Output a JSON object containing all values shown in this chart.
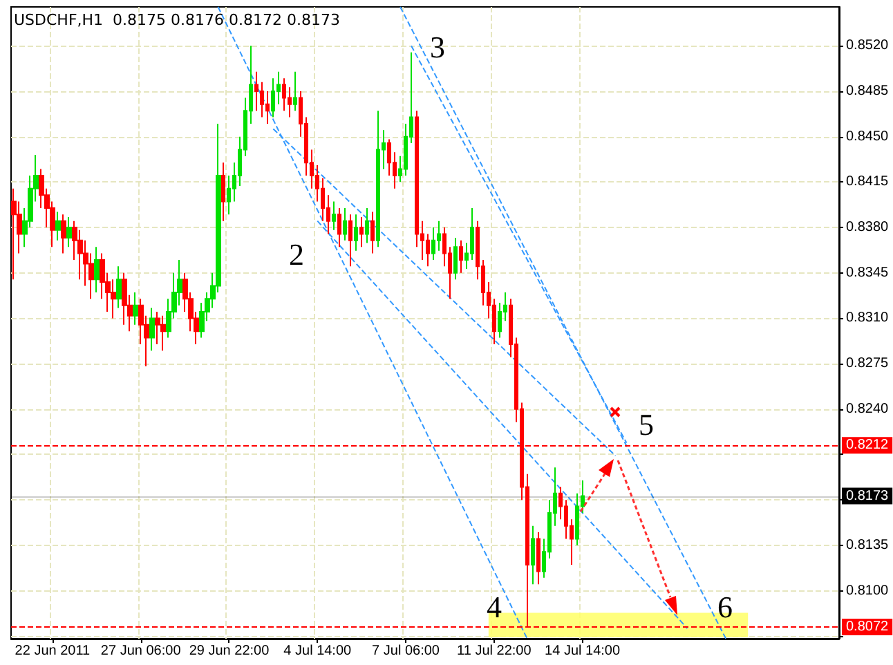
{
  "chart_data": {
    "type": "candlestick",
    "title": "USDCHF,H1  0.8175 0.8176 0.8172 0.8173",
    "categories": [
      null,
      null,
      null,
      null,
      null,
      null,
      null,
      "22 Jun 2011",
      null,
      null,
      null,
      null,
      null,
      null,
      null,
      null,
      null,
      null,
      null,
      null,
      null,
      null,
      null,
      "27 Jun 06:00",
      null,
      null,
      null,
      null,
      null,
      null,
      null,
      null,
      null,
      null,
      null,
      null,
      null,
      null,
      null,
      "29 Jun 22:00",
      null,
      null,
      null,
      null,
      null,
      null,
      null,
      null,
      null,
      null,
      null,
      null,
      null,
      null,
      null,
      "4 Jul 14:00",
      null,
      null,
      null,
      null,
      null,
      null,
      null,
      null,
      null,
      null,
      null,
      null,
      null,
      null,
      null,
      "7 Jul 06:00",
      null,
      null,
      null,
      null,
      null,
      null,
      null,
      null,
      null,
      null,
      null,
      null,
      null,
      null,
      null,
      "11 Jul 22:00",
      null,
      null,
      null,
      null,
      null,
      null,
      null,
      null,
      null,
      null,
      null,
      null,
      null,
      null,
      null,
      "14 Jul 14:00",
      null,
      null,
      null,
      null,
      null,
      null,
      null,
      null,
      null,
      null,
      null,
      null,
      null,
      null,
      null,
      null,
      null,
      null,
      null,
      null,
      null,
      null,
      null,
      null,
      null,
      null,
      null,
      null,
      null,
      null,
      null,
      null,
      null,
      null,
      null,
      null,
      null,
      null,
      null,
      null,
      null,
      null,
      null,
      null,
      null,
      null
    ],
    "series": [
      {
        "type": "candlestick",
        "colors": [
          "#ff0000",
          "#ff0000",
          "#00e000",
          "#00e000",
          "#00e000",
          "#ff0000",
          "#ff0000",
          "#ff0000",
          "#00e000",
          "#ff0000",
          "#00e000",
          "#ff0000",
          "#ff0000",
          "#ff0000",
          "#ff0000",
          "#00e000",
          "#ff0000",
          "#ff0000",
          "#ff0000",
          "#00e000",
          "#ff0000",
          "#ff0000",
          "#00e000",
          "#ff0000",
          "#ff0000",
          "#00e000",
          "#ff0000",
          "#ff0000",
          "#00e000",
          "#00e000",
          "#00e000",
          "#ff0000",
          "#ff0000",
          "#ff0000",
          "#00e000",
          "#00e000",
          "#00e000",
          "#00e000",
          "#ff0000",
          "#00e000",
          "#00e000",
          "#00e000",
          "#00e000",
          "#00e000",
          "#ff0000",
          "#ff0000",
          "#ff0000",
          "#00e000",
          "#00e000",
          "#ff0000",
          "#ff0000",
          "#00e000",
          "#ff0000",
          "#ff0000",
          "#ff0000",
          "#ff0000",
          "#ff0000",
          "#ff0000",
          "#00e000",
          "#ff0000",
          "#00e000",
          "#ff0000",
          "#00e000",
          "#ff0000",
          "#00e000",
          "#ff0000",
          "#00e000",
          "#00e000",
          "#ff0000",
          "#ff0000",
          "#00e000",
          "#00e000",
          "#00e000",
          "#ff0000",
          "#ff0000",
          "#ff0000",
          "#00e000",
          "#00e000",
          "#ff0000",
          "#ff0000",
          "#00e000",
          "#ff0000",
          "#00e000",
          "#00e000",
          "#ff0000",
          "#ff0000",
          "#ff0000",
          "#ff0000",
          "#00e000",
          "#00e000",
          "#ff0000",
          "#ff0000",
          "#ff0000",
          "#ff0000",
          "#00e000",
          "#ff0000",
          "#00e000",
          "#00e000",
          "#00e000",
          "#ff0000",
          "#ff0000",
          "#ff0000",
          "#00e000",
          "#00e000",
          null,
          null,
          null,
          null,
          null,
          null,
          null,
          null,
          null,
          null,
          null,
          null,
          null,
          null,
          null,
          null,
          null,
          null,
          null,
          null,
          null,
          null,
          null,
          null,
          null,
          null,
          null,
          null,
          null,
          null,
          null,
          null,
          null,
          null,
          null,
          null,
          null,
          null,
          null,
          null,
          null,
          null,
          null,
          null,
          null,
          null
        ],
        "ohlc": [
          [
            0.84,
            0.841,
            0.834,
            0.839
          ],
          [
            0.839,
            0.84,
            0.836,
            0.8375
          ],
          [
            0.8375,
            0.8395,
            0.8365,
            0.8385
          ],
          [
            0.8385,
            0.842,
            0.838,
            0.841
          ],
          [
            0.841,
            0.8436,
            0.84,
            0.842
          ],
          [
            0.842,
            0.8425,
            0.8395,
            0.8405
          ],
          [
            0.8405,
            0.841,
            0.838,
            0.8395
          ],
          [
            0.8395,
            0.84,
            0.8365,
            0.8378
          ],
          [
            0.8378,
            0.8392,
            0.837,
            0.8385
          ],
          [
            0.8385,
            0.839,
            0.836,
            0.8372
          ],
          [
            0.8372,
            0.8388,
            0.8365,
            0.838
          ],
          [
            0.838,
            0.8385,
            0.8355,
            0.837
          ],
          [
            0.837,
            0.8378,
            0.834,
            0.836
          ],
          [
            0.836,
            0.837,
            0.8335,
            0.8352
          ],
          [
            0.8352,
            0.836,
            0.8325,
            0.834
          ],
          [
            0.834,
            0.8365,
            0.833,
            0.8355
          ],
          [
            0.8355,
            0.836,
            0.8325,
            0.8338
          ],
          [
            0.8338,
            0.8345,
            0.8315,
            0.833
          ],
          [
            0.833,
            0.834,
            0.831,
            0.8325
          ],
          [
            0.8325,
            0.835,
            0.8318,
            0.834
          ],
          [
            0.834,
            0.8345,
            0.8305,
            0.832
          ],
          [
            0.832,
            0.8328,
            0.83,
            0.8312
          ],
          [
            0.8312,
            0.833,
            0.8305,
            0.832
          ],
          [
            0.832,
            0.8325,
            0.829,
            0.8305
          ],
          [
            0.8305,
            0.8312,
            0.8273,
            0.8295
          ],
          [
            0.8295,
            0.8318,
            0.8285,
            0.831
          ],
          [
            0.831,
            0.8315,
            0.829,
            0.8305
          ],
          [
            0.8305,
            0.8312,
            0.8285,
            0.83
          ],
          [
            0.83,
            0.8325,
            0.8295,
            0.8315
          ],
          [
            0.8315,
            0.8345,
            0.831,
            0.833
          ],
          [
            0.833,
            0.8355,
            0.832,
            0.834
          ],
          [
            0.834,
            0.8345,
            0.8315,
            0.8325
          ],
          [
            0.8325,
            0.833,
            0.83,
            0.831
          ],
          [
            0.831,
            0.8315,
            0.829,
            0.83
          ],
          [
            0.83,
            0.8322,
            0.8295,
            0.8315
          ],
          [
            0.8315,
            0.833,
            0.8308,
            0.8325
          ],
          [
            0.8325,
            0.8345,
            0.8318,
            0.8335
          ],
          [
            0.8335,
            0.846,
            0.833,
            0.842
          ],
          [
            0.842,
            0.843,
            0.8385,
            0.84
          ],
          [
            0.84,
            0.842,
            0.839,
            0.841
          ],
          [
            0.841,
            0.843,
            0.84,
            0.842
          ],
          [
            0.842,
            0.845,
            0.8412,
            0.844
          ],
          [
            0.844,
            0.848,
            0.8435,
            0.847
          ],
          [
            0.847,
            0.852,
            0.846,
            0.849
          ],
          [
            0.849,
            0.85,
            0.847,
            0.8485
          ],
          [
            0.8485,
            0.8492,
            0.8465,
            0.8475
          ],
          [
            0.8475,
            0.8485,
            0.846,
            0.847
          ],
          [
            0.847,
            0.8495,
            0.8465,
            0.8485
          ],
          [
            0.8485,
            0.85,
            0.8475,
            0.849
          ],
          [
            0.849,
            0.8495,
            0.847,
            0.848
          ],
          [
            0.848,
            0.8488,
            0.8465,
            0.8475
          ],
          [
            0.8475,
            0.85,
            0.847,
            0.848
          ],
          [
            0.848,
            0.8485,
            0.845,
            0.846
          ],
          [
            0.846,
            0.8465,
            0.842,
            0.843
          ],
          [
            0.843,
            0.844,
            0.841,
            0.842
          ],
          [
            0.842,
            0.8428,
            0.84,
            0.841
          ],
          [
            0.841,
            0.8418,
            0.8385,
            0.8395
          ],
          [
            0.8395,
            0.8405,
            0.8375,
            0.8385
          ],
          [
            0.8385,
            0.84,
            0.8378,
            0.839
          ],
          [
            0.839,
            0.8395,
            0.8365,
            0.8375
          ],
          [
            0.8375,
            0.8395,
            0.837,
            0.8385
          ],
          [
            0.8385,
            0.839,
            0.835,
            0.837
          ],
          [
            0.837,
            0.839,
            0.8362,
            0.838
          ],
          [
            0.838,
            0.8388,
            0.8365,
            0.8375
          ],
          [
            0.8375,
            0.8395,
            0.8368,
            0.8385
          ],
          [
            0.8385,
            0.8392,
            0.836,
            0.837
          ],
          [
            0.837,
            0.847,
            0.8365,
            0.844
          ],
          [
            0.844,
            0.8455,
            0.8425,
            0.8445
          ],
          [
            0.8445,
            0.8448,
            0.842,
            0.843
          ],
          [
            0.843,
            0.8438,
            0.841,
            0.842
          ],
          [
            0.842,
            0.8435,
            0.8415,
            0.8425
          ],
          [
            0.8425,
            0.846,
            0.842,
            0.845
          ],
          [
            0.845,
            0.8515,
            0.8445,
            0.8465
          ],
          [
            0.8465,
            0.847,
            0.8365,
            0.8375
          ],
          [
            0.8375,
            0.8385,
            0.8355,
            0.837
          ],
          [
            0.837,
            0.8375,
            0.835,
            0.836
          ],
          [
            0.836,
            0.838,
            0.8355,
            0.837
          ],
          [
            0.837,
            0.8385,
            0.8362,
            0.8375
          ],
          [
            0.8375,
            0.838,
            0.835,
            0.836
          ],
          [
            0.836,
            0.8365,
            0.8325,
            0.8345
          ],
          [
            0.8345,
            0.8372,
            0.834,
            0.8365
          ],
          [
            0.8365,
            0.837,
            0.8345,
            0.8355
          ],
          [
            0.8355,
            0.8368,
            0.8348,
            0.836
          ],
          [
            0.836,
            0.8395,
            0.8355,
            0.838
          ],
          [
            0.838,
            0.8385,
            0.834,
            0.835
          ],
          [
            0.835,
            0.8355,
            0.832,
            0.833
          ],
          [
            0.833,
            0.8338,
            0.831,
            0.832
          ],
          [
            0.832,
            0.8325,
            0.829,
            0.83
          ],
          [
            0.83,
            0.8322,
            0.8295,
            0.8315
          ],
          [
            0.8315,
            0.833,
            0.8308,
            0.832
          ],
          [
            0.832,
            0.8325,
            0.828,
            0.829
          ],
          [
            0.829,
            0.8295,
            0.823,
            0.824
          ],
          [
            0.824,
            0.8245,
            0.817,
            0.818
          ],
          [
            0.818,
            0.819,
            0.8072,
            0.812
          ],
          [
            0.812,
            0.815,
            0.8105,
            0.814
          ],
          [
            0.814,
            0.8145,
            0.8105,
            0.8115
          ],
          [
            0.8115,
            0.814,
            0.811,
            0.813
          ],
          [
            0.813,
            0.817,
            0.8125,
            0.816
          ],
          [
            0.816,
            0.8195,
            0.815,
            0.8175
          ],
          [
            0.8175,
            0.818,
            0.8155,
            0.8165
          ],
          [
            0.8165,
            0.817,
            0.814,
            0.815
          ],
          [
            0.815,
            0.8155,
            0.812,
            0.814
          ],
          [
            0.814,
            0.8175,
            0.8135,
            0.8165
          ],
          [
            0.8165,
            0.8185,
            0.816,
            0.8173
          ],
          null,
          null,
          null,
          null,
          null,
          null,
          null,
          null,
          null,
          null,
          null,
          null,
          null,
          null,
          null,
          null,
          null,
          null,
          null,
          null,
          null,
          null,
          null,
          null,
          null,
          null,
          null,
          null,
          null,
          null,
          null,
          null,
          null,
          null,
          null,
          null,
          null,
          null,
          null,
          null,
          null,
          null,
          null,
          null,
          null,
          null
        ]
      },
      {
        "type": "line",
        "color": "#3399ff",
        "line_style": "dashed",
        "values": [
          null,
          null,
          null,
          null,
          null,
          null,
          null,
          null,
          null,
          null,
          null,
          null,
          null,
          null,
          null,
          null,
          null,
          null,
          null,
          null,
          null,
          null,
          null,
          null,
          null,
          null,
          null,
          null,
          null,
          null,
          null,
          null,
          null,
          null,
          null,
          null,
          null,
          null,
          null,
          null,
          null,
          null,
          null,
          null,
          null,
          null,
          null,
          null,
          null,
          null,
          null,
          null,
          null,
          null,
          null,
          null,
          null,
          null,
          null,
          null,
          null,
          null,
          null,
          null,
          null,
          null,
          null,
          null,
          null,
          null,
          0.855,
          null,
          null,
          null,
          null,
          null,
          null,
          null,
          null,
          null,
          null,
          null,
          null,
          null,
          null,
          null,
          null,
          null,
          null,
          null,
          null,
          null,
          null,
          null,
          null,
          null,
          null,
          null,
          null,
          null,
          null,
          null,
          null,
          null,
          null,
          null,
          null,
          null,
          null,
          null,
          null,
          null,
          null,
          null,
          null,
          null,
          null,
          null,
          null,
          null,
          null,
          null,
          null,
          null,
          null,
          null,
          null,
          null,
          null,
          0.8063,
          null,
          null,
          null,
          null,
          null,
          null,
          null,
          null,
          null,
          null,
          null,
          null,
          null,
          null,
          null,
          null,
          null,
          null,
          null,
          null
        ]
      },
      {
        "type": "line",
        "color": "#3399ff",
        "line_style": "dashed",
        "values": [
          null,
          null,
          null,
          null,
          null,
          null,
          null,
          null,
          null,
          null,
          null,
          null,
          null,
          null,
          null,
          null,
          null,
          null,
          null,
          null,
          null,
          null,
          null,
          null,
          null,
          null,
          null,
          null,
          null,
          null,
          null,
          null,
          null,
          null,
          null,
          null,
          null,
          0.855,
          null,
          null,
          null,
          null,
          null,
          null,
          null,
          null,
          null,
          null,
          null,
          null,
          null,
          null,
          null,
          null,
          null,
          null,
          null,
          null,
          null,
          null,
          null,
          null,
          null,
          null,
          null,
          null,
          null,
          null,
          null,
          null,
          null,
          null,
          null,
          null,
          null,
          null,
          null,
          null,
          null,
          null,
          null,
          null,
          null,
          null,
          null,
          null,
          null,
          null,
          null,
          null,
          null,
          null,
          null,
          0.8063,
          null,
          null,
          null,
          null,
          null,
          null,
          null,
          null,
          null,
          null,
          null,
          null,
          null,
          null,
          null,
          null,
          null,
          null,
          null,
          null,
          null,
          null,
          null,
          null,
          null,
          null,
          null,
          null,
          null,
          null,
          null,
          null,
          null,
          null,
          null,
          null,
          null,
          null,
          null,
          null,
          null,
          null,
          null,
          null,
          null,
          null,
          null,
          null,
          null,
          null,
          null,
          null,
          null,
          null,
          null,
          null
        ]
      },
      {
        "type": "line",
        "color": "#3399ff",
        "line_style": "dashed",
        "values": [
          null,
          null,
          null,
          null,
          null,
          null,
          null,
          null,
          null,
          null,
          null,
          null,
          null,
          null,
          null,
          null,
          null,
          null,
          null,
          null,
          null,
          null,
          null,
          null,
          null,
          null,
          null,
          null,
          null,
          null,
          null,
          null,
          null,
          null,
          null,
          null,
          null,
          null,
          null,
          null,
          null,
          null,
          null,
          null,
          null,
          null,
          null,
          null,
          null,
          null,
          null,
          null,
          null,
          null,
          null,
          null,
          null,
          null,
          null,
          null,
          null,
          null,
          null,
          null,
          null,
          null,
          null,
          null,
          null,
          null,
          null,
          null,
          0.852,
          null,
          null,
          null,
          null,
          null,
          null,
          null,
          null,
          null,
          null,
          null,
          null,
          null,
          null,
          null,
          null,
          null,
          null,
          null,
          null,
          null,
          null,
          null,
          null,
          null,
          null,
          null,
          null,
          null,
          null,
          null,
          null,
          null,
          null,
          null,
          null,
          null,
          null,
          0.8214,
          null,
          null,
          null,
          null,
          null,
          null,
          null,
          null,
          null,
          null,
          null,
          null,
          null,
          null,
          null,
          null,
          null,
          null,
          null,
          null,
          null,
          null,
          null,
          null,
          null,
          null,
          null,
          null,
          null,
          null,
          null,
          null,
          null,
          null,
          null,
          null,
          null,
          null
        ]
      },
      {
        "type": "line",
        "color": "#3399ff",
        "line_style": "dashed",
        "values": [
          null,
          null,
          null,
          null,
          null,
          null,
          null,
          null,
          null,
          null,
          null,
          null,
          null,
          null,
          null,
          null,
          null,
          null,
          null,
          null,
          null,
          null,
          null,
          null,
          null,
          null,
          null,
          null,
          null,
          null,
          null,
          null,
          null,
          null,
          null,
          null,
          null,
          null,
          null,
          null,
          null,
          null,
          null,
          null,
          null,
          null,
          null,
          0.8456,
          null,
          null,
          null,
          null,
          null,
          null,
          null,
          null,
          null,
          null,
          null,
          null,
          null,
          null,
          null,
          null,
          null,
          null,
          null,
          null,
          null,
          null,
          null,
          null,
          null,
          null,
          null,
          null,
          null,
          null,
          null,
          null,
          null,
          null,
          null,
          null,
          null,
          null,
          null,
          null,
          null,
          null,
          null,
          null,
          null,
          null,
          null,
          null,
          null,
          null,
          null,
          null,
          null,
          null,
          null,
          null,
          null,
          null,
          null,
          null,
          null,
          0.8204,
          null,
          null,
          null,
          null,
          null,
          null,
          null,
          null,
          null,
          null,
          null,
          null,
          null,
          null,
          null,
          null,
          null,
          null,
          null,
          null,
          null,
          null,
          null,
          null,
          null,
          null,
          null,
          null,
          null,
          null,
          null,
          null,
          null,
          null,
          null,
          null,
          null,
          null,
          null,
          null
        ]
      },
      {
        "type": "line",
        "color": "#3399ff",
        "line_style": "dashed",
        "values": [
          null,
          null,
          null,
          null,
          null,
          null,
          null,
          null,
          null,
          null,
          null,
          null,
          null,
          null,
          null,
          null,
          null,
          null,
          null,
          null,
          null,
          null,
          null,
          null,
          null,
          null,
          null,
          null,
          null,
          null,
          null,
          null,
          null,
          null,
          null,
          null,
          null,
          null,
          null,
          null,
          null,
          null,
          null,
          null,
          null,
          null,
          null,
          null,
          null,
          null,
          null,
          null,
          null,
          null,
          null,
          0.8385,
          null,
          null,
          null,
          null,
          null,
          null,
          null,
          null,
          null,
          null,
          null,
          null,
          null,
          null,
          null,
          null,
          null,
          null,
          null,
          null,
          null,
          null,
          null,
          null,
          null,
          null,
          null,
          null,
          null,
          null,
          null,
          null,
          null,
          null,
          null,
          null,
          null,
          null,
          null,
          null,
          null,
          null,
          null,
          null,
          null,
          null,
          null,
          null,
          null,
          null,
          null,
          null,
          null,
          null,
          null,
          null,
          null,
          null,
          null,
          null,
          null,
          null,
          null,
          null,
          null,
          null,
          0.8071,
          null,
          null,
          null,
          null,
          null,
          null,
          null,
          null,
          null,
          null,
          null,
          null,
          null,
          null,
          null,
          null,
          null,
          null,
          null,
          null,
          null,
          null,
          null,
          null,
          null,
          null,
          null
        ]
      }
    ],
    "ylim": [
      0.8063,
      0.855
    ],
    "yticks": [
      {
        "value": 0.8065,
        "label": null
      },
      {
        "value": 0.81,
        "label": "0.8100"
      },
      {
        "value": 0.8135,
        "label": "0.8135"
      },
      {
        "value": 0.817,
        "label": null
      },
      {
        "value": 0.8205,
        "label": null
      },
      {
        "value": 0.824,
        "label": "0.8240"
      },
      {
        "value": 0.8275,
        "label": "0.8275"
      },
      {
        "value": 0.831,
        "label": "0.8310"
      },
      {
        "value": 0.8345,
        "label": "0.8345"
      },
      {
        "value": 0.838,
        "label": "0.8380"
      },
      {
        "value": 0.8415,
        "label": "0.8415"
      },
      {
        "value": 0.845,
        "label": "0.8450"
      },
      {
        "value": 0.8485,
        "label": "0.8485"
      },
      {
        "value": 0.852,
        "label": "0.8520"
      }
    ],
    "grid": true,
    "ref_lines": [
      {
        "axis": "y",
        "value": 0.8212,
        "label": "0.8212",
        "color": "#ff0000",
        "line_style": "dashed"
      },
      {
        "axis": "y",
        "value": 0.8072,
        "label": "0.8072",
        "color": "#ff0000",
        "line_style": "dashed"
      },
      {
        "axis": "y",
        "value": 0.8173,
        "label": "0.8173",
        "color": "#000000",
        "line_style": "solid"
      }
    ],
    "bands": [
      {
        "axis": "y",
        "from": 0.8064,
        "to": 0.8083,
        "color": "#ffff66"
      }
    ],
    "annotations": [
      "2",
      "3",
      "4",
      "5",
      "6"
    ]
  }
}
